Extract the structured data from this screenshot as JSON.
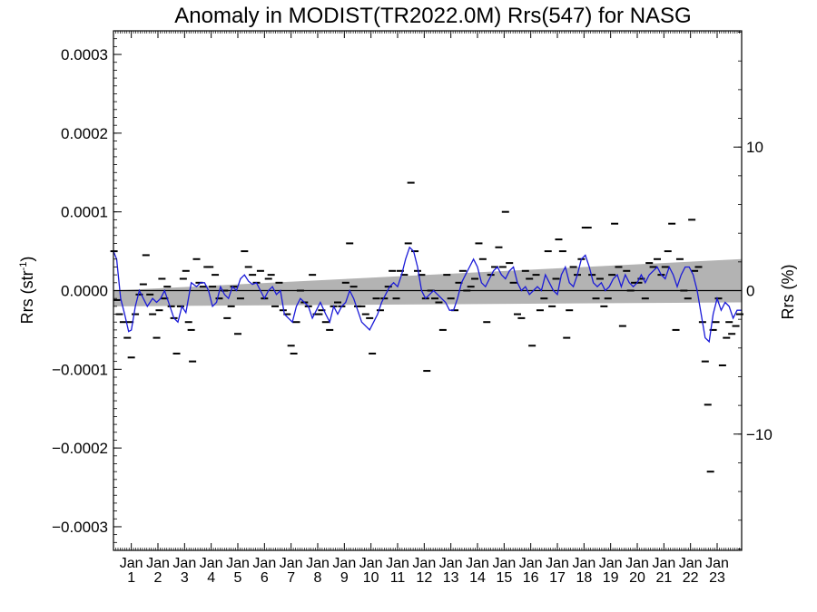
{
  "chart_data": {
    "type": "scatter",
    "title": "Anomaly in MODIST(TR2022.0M) Rrs(547) for NASG",
    "ylabel_left_main": "Rrs (str",
    "ylabel_left_sup": "-1",
    "ylabel_left_tail": ")",
    "ylabel_right": "Rrs (%)",
    "month_label": "Jan",
    "years": [
      "1",
      "2",
      "3",
      "4",
      "5",
      "6",
      "7",
      "8",
      "9",
      "10",
      "11",
      "12",
      "13",
      "14",
      "15",
      "16",
      "17",
      "18",
      "19",
      "20",
      "21",
      "22",
      "23"
    ],
    "xlim": [
      2000.33,
      2023.92
    ],
    "ylim": [
      -0.00033,
      0.00033
    ],
    "ylim_right_percent": [
      -18.1,
      18.1
    ],
    "y_ticks_left": [
      {
        "value": 0.0003,
        "label": "0.0003"
      },
      {
        "value": 0.0002,
        "label": "0.0002"
      },
      {
        "value": 0.0001,
        "label": "0.0001"
      },
      {
        "value": 0.0,
        "label": "0.0000"
      },
      {
        "value": -0.0001,
        "label": "−0.0001"
      },
      {
        "value": -0.0002,
        "label": "−0.0002"
      },
      {
        "value": -0.0003,
        "label": "−0.0003"
      }
    ],
    "y_ticks_right": [
      {
        "value": 10,
        "label": "10"
      },
      {
        "value": 0,
        "label": "0"
      },
      {
        "value": -10,
        "label": "−10"
      }
    ],
    "zero_line": 0,
    "trend_band": {
      "x": [
        2000.33,
        2023.92
      ],
      "lower": [
        -2e-05,
        -1.5e-05
      ],
      "upper": [
        0.0,
        4e-05
      ]
    },
    "monthly_points": [
      [
        2000.35,
        5e-05
      ],
      [
        2000.45,
        -1.2e-05
      ],
      [
        2000.55,
        -3e-05
      ],
      [
        2000.7,
        -4e-05
      ],
      [
        2000.85,
        -6e-05
      ],
      [
        2000.95,
        -4e-05
      ],
      [
        2001.0,
        -8.5e-05
      ],
      [
        2001.15,
        -3e-05
      ],
      [
        2001.3,
        -5e-06
      ],
      [
        2001.45,
        8e-06
      ],
      [
        2001.55,
        4.5e-05
      ],
      [
        2001.7,
        -5e-06
      ],
      [
        2001.8,
        -3e-05
      ],
      [
        2001.95,
        -6e-05
      ],
      [
        2002.05,
        -2.5e-05
      ],
      [
        2002.15,
        1.5e-05
      ],
      [
        2002.25,
        -1e-05
      ],
      [
        2002.35,
        5e-06
      ],
      [
        2002.5,
        -2e-05
      ],
      [
        2002.6,
        -3.5e-05
      ],
      [
        2002.7,
        -8e-05
      ],
      [
        2002.85,
        -2e-05
      ],
      [
        2002.95,
        1.5e-05
      ],
      [
        2003.05,
        2.5e-05
      ],
      [
        2003.15,
        -4e-05
      ],
      [
        2003.25,
        -5e-05
      ],
      [
        2003.3,
        -9e-05
      ],
      [
        2003.45,
        4e-05
      ],
      [
        2003.55,
        1e-05
      ],
      [
        2003.7,
        5e-06
      ],
      [
        2003.85,
        3e-05
      ],
      [
        2003.95,
        3e-05
      ],
      [
        2004.05,
        5e-06
      ],
      [
        2004.15,
        2e-05
      ],
      [
        2004.3,
        -1e-05
      ],
      [
        2004.5,
        0.0
      ],
      [
        2004.6,
        -3.5e-05
      ],
      [
        2004.75,
        -2e-05
      ],
      [
        2004.85,
        5e-06
      ],
      [
        2005.0,
        -5.5e-05
      ],
      [
        2005.1,
        -1e-05
      ],
      [
        2005.25,
        5e-05
      ],
      [
        2005.4,
        3e-05
      ],
      [
        2005.55,
        2e-05
      ],
      [
        2005.7,
        1e-05
      ],
      [
        2005.85,
        2.5e-05
      ],
      [
        2006.0,
        -1e-05
      ],
      [
        2006.15,
        1.5e-05
      ],
      [
        2006.25,
        2e-05
      ],
      [
        2006.4,
        -2e-05
      ],
      [
        2006.55,
        1e-05
      ],
      [
        2006.7,
        -2.5e-05
      ],
      [
        2006.85,
        -3e-05
      ],
      [
        2007.0,
        -7e-05
      ],
      [
        2007.1,
        -8e-05
      ],
      [
        2007.2,
        -4e-05
      ],
      [
        2007.35,
        0.0
      ],
      [
        2007.5,
        -1.5e-05
      ],
      [
        2007.65,
        -2e-05
      ],
      [
        2007.8,
        2e-05
      ],
      [
        2007.95,
        -3e-05
      ],
      [
        2008.05,
        -3e-05
      ],
      [
        2008.15,
        -2.5e-05
      ],
      [
        2008.3,
        -4e-05
      ],
      [
        2008.45,
        -5e-05
      ],
      [
        2008.6,
        -2e-05
      ],
      [
        2008.75,
        -1.5e-05
      ],
      [
        2008.9,
        -2e-05
      ],
      [
        2009.05,
        1e-05
      ],
      [
        2009.2,
        6e-05
      ],
      [
        2009.35,
        5e-06
      ],
      [
        2009.5,
        -2e-05
      ],
      [
        2009.65,
        -2e-05
      ],
      [
        2009.8,
        -3e-05
      ],
      [
        2009.95,
        -3.5e-05
      ],
      [
        2010.05,
        -8e-05
      ],
      [
        2010.2,
        -1e-05
      ],
      [
        2010.35,
        -2.5e-05
      ],
      [
        2010.5,
        -1e-05
      ],
      [
        2010.65,
        5e-06
      ],
      [
        2010.8,
        2.5e-05
      ],
      [
        2010.95,
        -1e-05
      ],
      [
        2011.1,
        2.5e-05
      ],
      [
        2011.25,
        2e-05
      ],
      [
        2011.4,
        6e-05
      ],
      [
        2011.5,
        0.000137
      ],
      [
        2011.65,
        5e-05
      ],
      [
        2011.75,
        2.5e-05
      ],
      [
        2011.9,
        2e-05
      ],
      [
        2012.05,
        -1e-05
      ],
      [
        2012.1,
        -0.000102
      ],
      [
        2012.25,
        0.0
      ],
      [
        2012.4,
        -1e-05
      ],
      [
        2012.55,
        -1.5e-05
      ],
      [
        2012.7,
        -5e-05
      ],
      [
        2012.85,
        2e-05
      ],
      [
        2013.0,
        -1e-05
      ],
      [
        2013.15,
        -2.5e-05
      ],
      [
        2013.3,
        1e-05
      ],
      [
        2013.45,
        2.5e-05
      ],
      [
        2013.6,
        0.0
      ],
      [
        2013.75,
        5e-06
      ],
      [
        2013.9,
        1.5e-05
      ],
      [
        2014.05,
        6e-05
      ],
      [
        2014.2,
        4e-05
      ],
      [
        2014.35,
        -4e-05
      ],
      [
        2014.5,
        2e-05
      ],
      [
        2014.65,
        3e-05
      ],
      [
        2014.8,
        5.5e-05
      ],
      [
        2014.95,
        3e-05
      ],
      [
        2015.05,
        0.0001
      ],
      [
        2015.2,
        3.5e-05
      ],
      [
        2015.35,
        1e-05
      ],
      [
        2015.5,
        -3e-05
      ],
      [
        2015.65,
        -3.5e-05
      ],
      [
        2015.8,
        2.5e-05
      ],
      [
        2015.95,
        1.5e-05
      ],
      [
        2016.05,
        -7e-05
      ],
      [
        2016.2,
        2e-05
      ],
      [
        2016.35,
        -2.5e-05
      ],
      [
        2016.5,
        -1e-05
      ],
      [
        2016.65,
        5e-05
      ],
      [
        2016.8,
        -2e-05
      ],
      [
        2016.95,
        1.5e-05
      ],
      [
        2017.05,
        6.5e-05
      ],
      [
        2017.2,
        5e-05
      ],
      [
        2017.35,
        -6e-05
      ],
      [
        2017.45,
        -2.5e-05
      ],
      [
        2017.6,
        3e-05
      ],
      [
        2017.75,
        2e-05
      ],
      [
        2017.9,
        4e-05
      ],
      [
        2018.05,
        8e-05
      ],
      [
        2018.15,
        8e-05
      ],
      [
        2018.3,
        2e-05
      ],
      [
        2018.45,
        -1e-05
      ],
      [
        2018.6,
        1.5e-05
      ],
      [
        2018.75,
        -2e-05
      ],
      [
        2018.9,
        -1e-05
      ],
      [
        2019.05,
        2e-05
      ],
      [
        2019.15,
        8.5e-05
      ],
      [
        2019.3,
        3e-05
      ],
      [
        2019.45,
        -4.5e-05
      ],
      [
        2019.6,
        2.5e-05
      ],
      [
        2019.75,
        0.0
      ],
      [
        2019.9,
        1e-05
      ],
      [
        2020.05,
        1e-05
      ],
      [
        2020.15,
        1.5e-05
      ],
      [
        2020.3,
        -1e-05
      ],
      [
        2020.45,
        3.5e-05
      ],
      [
        2020.6,
        3e-05
      ],
      [
        2020.75,
        4e-05
      ],
      [
        2020.9,
        2e-05
      ],
      [
        2021.05,
        3e-05
      ],
      [
        2021.15,
        5e-05
      ],
      [
        2021.3,
        8.5e-05
      ],
      [
        2021.45,
        -5e-05
      ],
      [
        2021.6,
        4e-05
      ],
      [
        2021.75,
        0.0
      ],
      [
        2021.9,
        -1e-05
      ],
      [
        2022.05,
        9e-05
      ],
      [
        2022.15,
        2.5e-05
      ],
      [
        2022.3,
        3e-05
      ],
      [
        2022.45,
        -4e-05
      ],
      [
        2022.55,
        -9e-05
      ],
      [
        2022.65,
        -0.000145
      ],
      [
        2022.75,
        -0.00023
      ],
      [
        2022.85,
        -5e-05
      ],
      [
        2022.95,
        -4e-05
      ],
      [
        2023.05,
        -1e-05
      ],
      [
        2023.2,
        -9.5e-05
      ],
      [
        2023.35,
        -6e-05
      ],
      [
        2023.45,
        -4e-05
      ],
      [
        2023.55,
        -5.5e-05
      ],
      [
        2023.7,
        -4.5e-05
      ],
      [
        2023.85,
        -3e-05
      ]
    ],
    "smoothed_series": {
      "color": "#1a1ad8",
      "points": [
        [
          2000.33,
          5e-05
        ],
        [
          2000.45,
          4e-05
        ],
        [
          2000.6,
          -1e-05
        ],
        [
          2000.75,
          -3e-05
        ],
        [
          2000.9,
          -5.2e-05
        ],
        [
          2001.0,
          -5e-05
        ],
        [
          2001.15,
          -2e-05
        ],
        [
          2001.3,
          0.0
        ],
        [
          2001.45,
          -1e-05
        ],
        [
          2001.6,
          -2e-05
        ],
        [
          2001.8,
          -1e-05
        ],
        [
          2001.95,
          -1.5e-05
        ],
        [
          2002.1,
          -1e-05
        ],
        [
          2002.25,
          0.0
        ],
        [
          2002.45,
          -2e-05
        ],
        [
          2002.6,
          -3.5e-05
        ],
        [
          2002.75,
          -4e-05
        ],
        [
          2002.9,
          -2e-05
        ],
        [
          2003.05,
          -2.8e-05
        ],
        [
          2003.25,
          1e-05
        ],
        [
          2003.45,
          5e-06
        ],
        [
          2003.6,
          1e-05
        ],
        [
          2003.75,
          1e-05
        ],
        [
          2003.9,
          0.0
        ],
        [
          2004.05,
          -2e-05
        ],
        [
          2004.2,
          -1.5e-05
        ],
        [
          2004.35,
          5e-06
        ],
        [
          2004.5,
          -5e-06
        ],
        [
          2004.65,
          -1e-05
        ],
        [
          2004.8,
          5e-06
        ],
        [
          2004.95,
          0.0
        ],
        [
          2005.1,
          1.5e-05
        ],
        [
          2005.25,
          2e-05
        ],
        [
          2005.4,
          1.2e-05
        ],
        [
          2005.55,
          8e-06
        ],
        [
          2005.7,
          1e-05
        ],
        [
          2005.85,
          0.0
        ],
        [
          2006.0,
          -1e-05
        ],
        [
          2006.15,
          0.0
        ],
        [
          2006.3,
          5e-06
        ],
        [
          2006.45,
          -5e-06
        ],
        [
          2006.6,
          0.0
        ],
        [
          2006.75,
          -3e-05
        ],
        [
          2006.9,
          -3.5e-05
        ],
        [
          2007.05,
          -4e-05
        ],
        [
          2007.2,
          -2e-05
        ],
        [
          2007.35,
          -1e-05
        ],
        [
          2007.5,
          -1.5e-05
        ],
        [
          2007.65,
          -2e-05
        ],
        [
          2007.8,
          -3.5e-05
        ],
        [
          2007.95,
          -2.5e-05
        ],
        [
          2008.1,
          -1.5e-05
        ],
        [
          2008.3,
          -3e-05
        ],
        [
          2008.45,
          -4e-05
        ],
        [
          2008.6,
          -2e-05
        ],
        [
          2008.75,
          -3e-05
        ],
        [
          2008.9,
          -2e-05
        ],
        [
          2009.05,
          -1.5e-05
        ],
        [
          2009.2,
          0.0
        ],
        [
          2009.35,
          -1e-05
        ],
        [
          2009.5,
          -2.5e-05
        ],
        [
          2009.65,
          -4e-05
        ],
        [
          2009.8,
          -4.5e-05
        ],
        [
          2009.95,
          -5e-05
        ],
        [
          2010.1,
          -4e-05
        ],
        [
          2010.25,
          -3e-05
        ],
        [
          2010.4,
          -1.5e-05
        ],
        [
          2010.55,
          -5e-06
        ],
        [
          2010.7,
          5e-06
        ],
        [
          2010.85,
          1e-05
        ],
        [
          2011.0,
          5e-06
        ],
        [
          2011.15,
          2e-05
        ],
        [
          2011.3,
          4e-05
        ],
        [
          2011.45,
          5.5e-05
        ],
        [
          2011.6,
          5e-05
        ],
        [
          2011.75,
          3e-05
        ],
        [
          2011.9,
          0.0
        ],
        [
          2012.05,
          -1e-05
        ],
        [
          2012.2,
          -5e-06
        ],
        [
          2012.35,
          0.0
        ],
        [
          2012.5,
          -5e-06
        ],
        [
          2012.65,
          -1e-05
        ],
        [
          2012.8,
          -1.5e-05
        ],
        [
          2012.95,
          -2.5e-05
        ],
        [
          2013.1,
          -2.5e-05
        ],
        [
          2013.25,
          -1e-05
        ],
        [
          2013.4,
          1e-05
        ],
        [
          2013.55,
          2e-05
        ],
        [
          2013.7,
          3e-05
        ],
        [
          2013.85,
          4e-05
        ],
        [
          2014.0,
          3e-05
        ],
        [
          2014.15,
          1e-05
        ],
        [
          2014.3,
          5e-06
        ],
        [
          2014.45,
          1.5e-05
        ],
        [
          2014.6,
          2.5e-05
        ],
        [
          2014.75,
          3e-05
        ],
        [
          2014.9,
          2e-05
        ],
        [
          2015.05,
          1.5e-05
        ],
        [
          2015.2,
          2.5e-05
        ],
        [
          2015.35,
          3e-05
        ],
        [
          2015.5,
          1e-05
        ],
        [
          2015.65,
          0.0
        ],
        [
          2015.8,
          5e-06
        ],
        [
          2015.95,
          -5e-06
        ],
        [
          2016.1,
          0.0
        ],
        [
          2016.25,
          5e-06
        ],
        [
          2016.4,
          0.0
        ],
        [
          2016.55,
          2e-05
        ],
        [
          2016.7,
          1e-05
        ],
        [
          2016.85,
          0.0
        ],
        [
          2017.0,
          -5e-06
        ],
        [
          2017.15,
          2e-05
        ],
        [
          2017.3,
          3e-05
        ],
        [
          2017.45,
          1e-05
        ],
        [
          2017.6,
          5e-06
        ],
        [
          2017.75,
          2e-05
        ],
        [
          2017.9,
          4e-05
        ],
        [
          2018.05,
          4.5e-05
        ],
        [
          2018.2,
          3e-05
        ],
        [
          2018.35,
          1e-05
        ],
        [
          2018.5,
          5e-06
        ],
        [
          2018.65,
          1e-05
        ],
        [
          2018.8,
          0.0
        ],
        [
          2018.95,
          5e-06
        ],
        [
          2019.1,
          1.5e-05
        ],
        [
          2019.25,
          2e-05
        ],
        [
          2019.4,
          5e-06
        ],
        [
          2019.55,
          2e-05
        ],
        [
          2019.7,
          1e-05
        ],
        [
          2019.85,
          5e-06
        ],
        [
          2020.0,
          1e-05
        ],
        [
          2020.15,
          2e-05
        ],
        [
          2020.3,
          1e-05
        ],
        [
          2020.45,
          2e-05
        ],
        [
          2020.6,
          2.5e-05
        ],
        [
          2020.75,
          3e-05
        ],
        [
          2020.9,
          2e-05
        ],
        [
          2021.05,
          1.5e-05
        ],
        [
          2021.2,
          3e-05
        ],
        [
          2021.35,
          2e-05
        ],
        [
          2021.5,
          5e-06
        ],
        [
          2021.65,
          2e-05
        ],
        [
          2021.8,
          3e-05
        ],
        [
          2021.95,
          3e-05
        ],
        [
          2022.1,
          2e-05
        ],
        [
          2022.25,
          0.0
        ],
        [
          2022.4,
          -3e-05
        ],
        [
          2022.55,
          -6e-05
        ],
        [
          2022.7,
          -6.5e-05
        ],
        [
          2022.85,
          -3e-05
        ],
        [
          2023.0,
          -1e-05
        ],
        [
          2023.15,
          -2.5e-05
        ],
        [
          2023.3,
          -1.5e-05
        ],
        [
          2023.45,
          -2e-05
        ],
        [
          2023.6,
          -3.5e-05
        ],
        [
          2023.75,
          -2.5e-05
        ],
        [
          2023.92,
          -2.5e-05
        ]
      ]
    },
    "grid": false,
    "legend": "none",
    "colors": {
      "smoothed": "#1a1ad8",
      "band": "#b3b3b3",
      "points": "#000000"
    }
  }
}
